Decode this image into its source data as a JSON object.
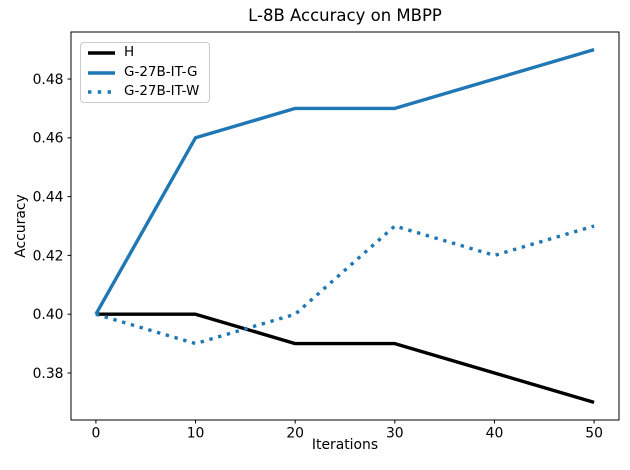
{
  "figure": {
    "background": "#ffffff",
    "text_color": "#000000",
    "spine_color": "#000000"
  },
  "chart_data": {
    "type": "line",
    "title": "L-8B Accuracy on MBPP",
    "xlabel": "Iterations",
    "ylabel": "Accuracy",
    "x": [
      0,
      10,
      20,
      30,
      40,
      50
    ],
    "series": [
      {
        "name": "H",
        "color": "#000000",
        "linestyle": "solid",
        "linewidth": 3.4,
        "values": [
          0.4,
          0.4,
          0.39,
          0.39,
          0.38,
          0.37
        ]
      },
      {
        "name": "G-27B-IT-G",
        "color": "#1f77b4",
        "linestyle": "solid",
        "linewidth": 3.4,
        "values": [
          0.4,
          0.46,
          0.47,
          0.47,
          0.48,
          0.49
        ]
      },
      {
        "name": "G-27B-IT-W",
        "color": "#1f77b4",
        "linestyle": "dotted",
        "linewidth": 3.4,
        "values": [
          0.4,
          0.39,
          0.4,
          0.43,
          0.42,
          0.43
        ]
      }
    ],
    "xticks": [
      0,
      10,
      20,
      30,
      40,
      50
    ],
    "yticks": [
      0.38,
      0.4,
      0.42,
      0.44,
      0.46,
      0.48
    ],
    "xlim": [
      -2.5,
      52.5
    ],
    "ylim": [
      0.364,
      0.496
    ],
    "grid": false,
    "legend_position": "upper-left"
  }
}
